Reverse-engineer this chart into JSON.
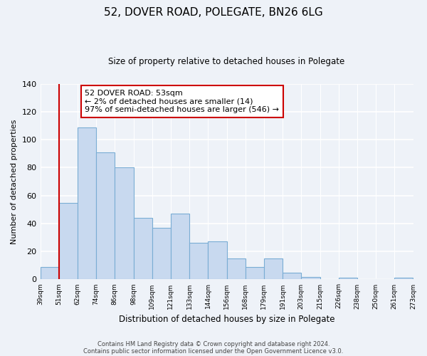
{
  "title": "52, DOVER ROAD, POLEGATE, BN26 6LG",
  "subtitle": "Size of property relative to detached houses in Polegate",
  "xlabel": "Distribution of detached houses by size in Polegate",
  "ylabel": "Number of detached properties",
  "categories": [
    "39sqm",
    "51sqm",
    "62sqm",
    "74sqm",
    "86sqm",
    "98sqm",
    "109sqm",
    "121sqm",
    "133sqm",
    "144sqm",
    "156sqm",
    "168sqm",
    "179sqm",
    "191sqm",
    "203sqm",
    "215sqm",
    "226sqm",
    "238sqm",
    "250sqm",
    "261sqm",
    "273sqm"
  ],
  "values": [
    9,
    55,
    109,
    91,
    80,
    44,
    37,
    47,
    26,
    27,
    15,
    9,
    15,
    5,
    2,
    0,
    1,
    0,
    0,
    1
  ],
  "bar_color": "#c8d9ef",
  "bar_edge_color": "#7aadd4",
  "marker_label": "52 DOVER ROAD: 53sqm",
  "annotation_line1": "← 2% of detached houses are smaller (14)",
  "annotation_line2": "97% of semi-detached houses are larger (546) →",
  "marker_color": "#cc0000",
  "ylim": [
    0,
    140
  ],
  "yticks": [
    0,
    20,
    40,
    60,
    80,
    100,
    120,
    140
  ],
  "footnote1": "Contains HM Land Registry data © Crown copyright and database right 2024.",
  "footnote2": "Contains public sector information licensed under the Open Government Licence v3.0.",
  "background_color": "#eef2f8",
  "annotation_box_color": "#ffffff",
  "annotation_box_edge": "#cc0000"
}
